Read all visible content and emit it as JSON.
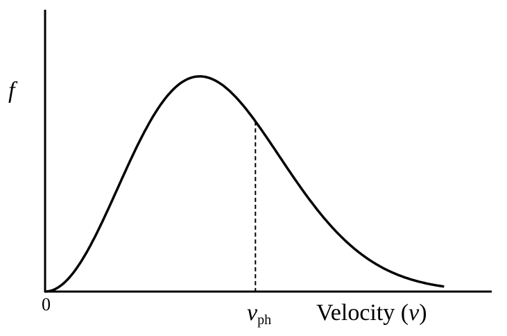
{
  "chart_data": {
    "type": "line",
    "curve": "maxwellian",
    "title": "",
    "ylabel": "f",
    "xlabel_text": "Velocity (",
    "xlabel_symbol": "v",
    "xlabel_close": ")",
    "x_ticks": [
      "0"
    ],
    "xlim": [
      0,
      2.9
    ],
    "peak_x": 1.0,
    "curve_end_x": 2.58,
    "marker": {
      "symbol": "v",
      "subscript": "ph",
      "x": 1.36,
      "style": "dashed"
    },
    "grid": false,
    "colors": {
      "line": "#000000",
      "background": "#ffffff"
    }
  }
}
